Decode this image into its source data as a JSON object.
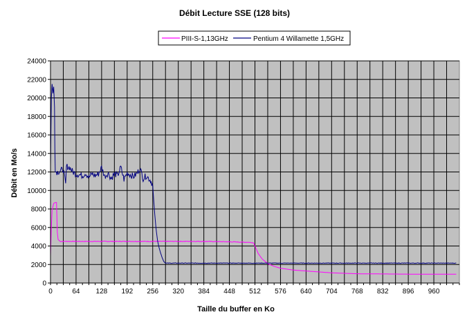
{
  "chart_data": {
    "type": "line",
    "title": "Débit Lecture SSE (128 bits)",
    "xlabel": "Taille du buffer en Ko",
    "ylabel": "Débit en Mo/s",
    "xlim": [
      0,
      1024
    ],
    "ylim": [
      0,
      24000
    ],
    "x_ticks": [
      0,
      64,
      128,
      192,
      256,
      320,
      384,
      448,
      512,
      576,
      640,
      704,
      768,
      832,
      896,
      960
    ],
    "y_ticks": [
      0,
      2000,
      4000,
      6000,
      8000,
      10000,
      12000,
      14000,
      16000,
      18000,
      20000,
      22000,
      24000
    ],
    "grid": true,
    "plot_background": "#c0c0c0",
    "legend_position": "top-center",
    "series": [
      {
        "name": "PIII-S-1,13GHz",
        "color": "#ff00ff",
        "points": [
          [
            0,
            2900
          ],
          [
            2,
            6000
          ],
          [
            4,
            7900
          ],
          [
            8,
            8600
          ],
          [
            12,
            8700
          ],
          [
            15,
            8700
          ],
          [
            17,
            5500
          ],
          [
            19,
            4700
          ],
          [
            24,
            4500
          ],
          [
            64,
            4500
          ],
          [
            128,
            4500
          ],
          [
            192,
            4500
          ],
          [
            256,
            4500
          ],
          [
            320,
            4500
          ],
          [
            384,
            4500
          ],
          [
            448,
            4450
          ],
          [
            496,
            4400
          ],
          [
            508,
            4350
          ],
          [
            512,
            4000
          ],
          [
            520,
            3200
          ],
          [
            530,
            2600
          ],
          [
            544,
            2100
          ],
          [
            560,
            1800
          ],
          [
            576,
            1600
          ],
          [
            608,
            1400
          ],
          [
            640,
            1300
          ],
          [
            672,
            1200
          ],
          [
            704,
            1100
          ],
          [
            736,
            1050
          ],
          [
            768,
            1000
          ],
          [
            832,
            980
          ],
          [
            896,
            960
          ],
          [
            960,
            960
          ],
          [
            1016,
            960
          ]
        ]
      },
      {
        "name": "Pentium 4 Willamette 1,5GHz",
        "color": "#000080",
        "points": [
          [
            0,
            12600
          ],
          [
            2,
            20000
          ],
          [
            4,
            21500
          ],
          [
            6,
            20500
          ],
          [
            8,
            21200
          ],
          [
            10,
            19000
          ],
          [
            11,
            14500
          ],
          [
            12,
            12000
          ],
          [
            16,
            12000
          ],
          [
            24,
            12100
          ],
          [
            32,
            12300
          ],
          [
            38,
            10600
          ],
          [
            40,
            12600
          ],
          [
            48,
            12500
          ],
          [
            56,
            12000
          ],
          [
            64,
            11800
          ],
          [
            72,
            11700
          ],
          [
            80,
            11600
          ],
          [
            88,
            11900
          ],
          [
            96,
            11400
          ],
          [
            104,
            11800
          ],
          [
            112,
            11600
          ],
          [
            120,
            11800
          ],
          [
            128,
            12500
          ],
          [
            136,
            11500
          ],
          [
            144,
            11900
          ],
          [
            152,
            11300
          ],
          [
            160,
            11800
          ],
          [
            168,
            11600
          ],
          [
            176,
            12500
          ],
          [
            184,
            11200
          ],
          [
            192,
            11900
          ],
          [
            200,
            11700
          ],
          [
            208,
            11500
          ],
          [
            216,
            11800
          ],
          [
            224,
            12400
          ],
          [
            232,
            11300
          ],
          [
            240,
            11600
          ],
          [
            248,
            11200
          ],
          [
            252,
            11000
          ],
          [
            256,
            10500
          ],
          [
            260,
            8000
          ],
          [
            264,
            6000
          ],
          [
            268,
            4600
          ],
          [
            272,
            3800
          ],
          [
            276,
            3200
          ],
          [
            280,
            2700
          ],
          [
            284,
            2300
          ],
          [
            288,
            2150
          ],
          [
            320,
            2150
          ],
          [
            384,
            2150
          ],
          [
            448,
            2150
          ],
          [
            512,
            2150
          ],
          [
            576,
            2150
          ],
          [
            640,
            2150
          ],
          [
            704,
            2150
          ],
          [
            768,
            2150
          ],
          [
            832,
            2150
          ],
          [
            896,
            2150
          ],
          [
            960,
            2150
          ],
          [
            1016,
            2150
          ]
        ]
      }
    ]
  }
}
